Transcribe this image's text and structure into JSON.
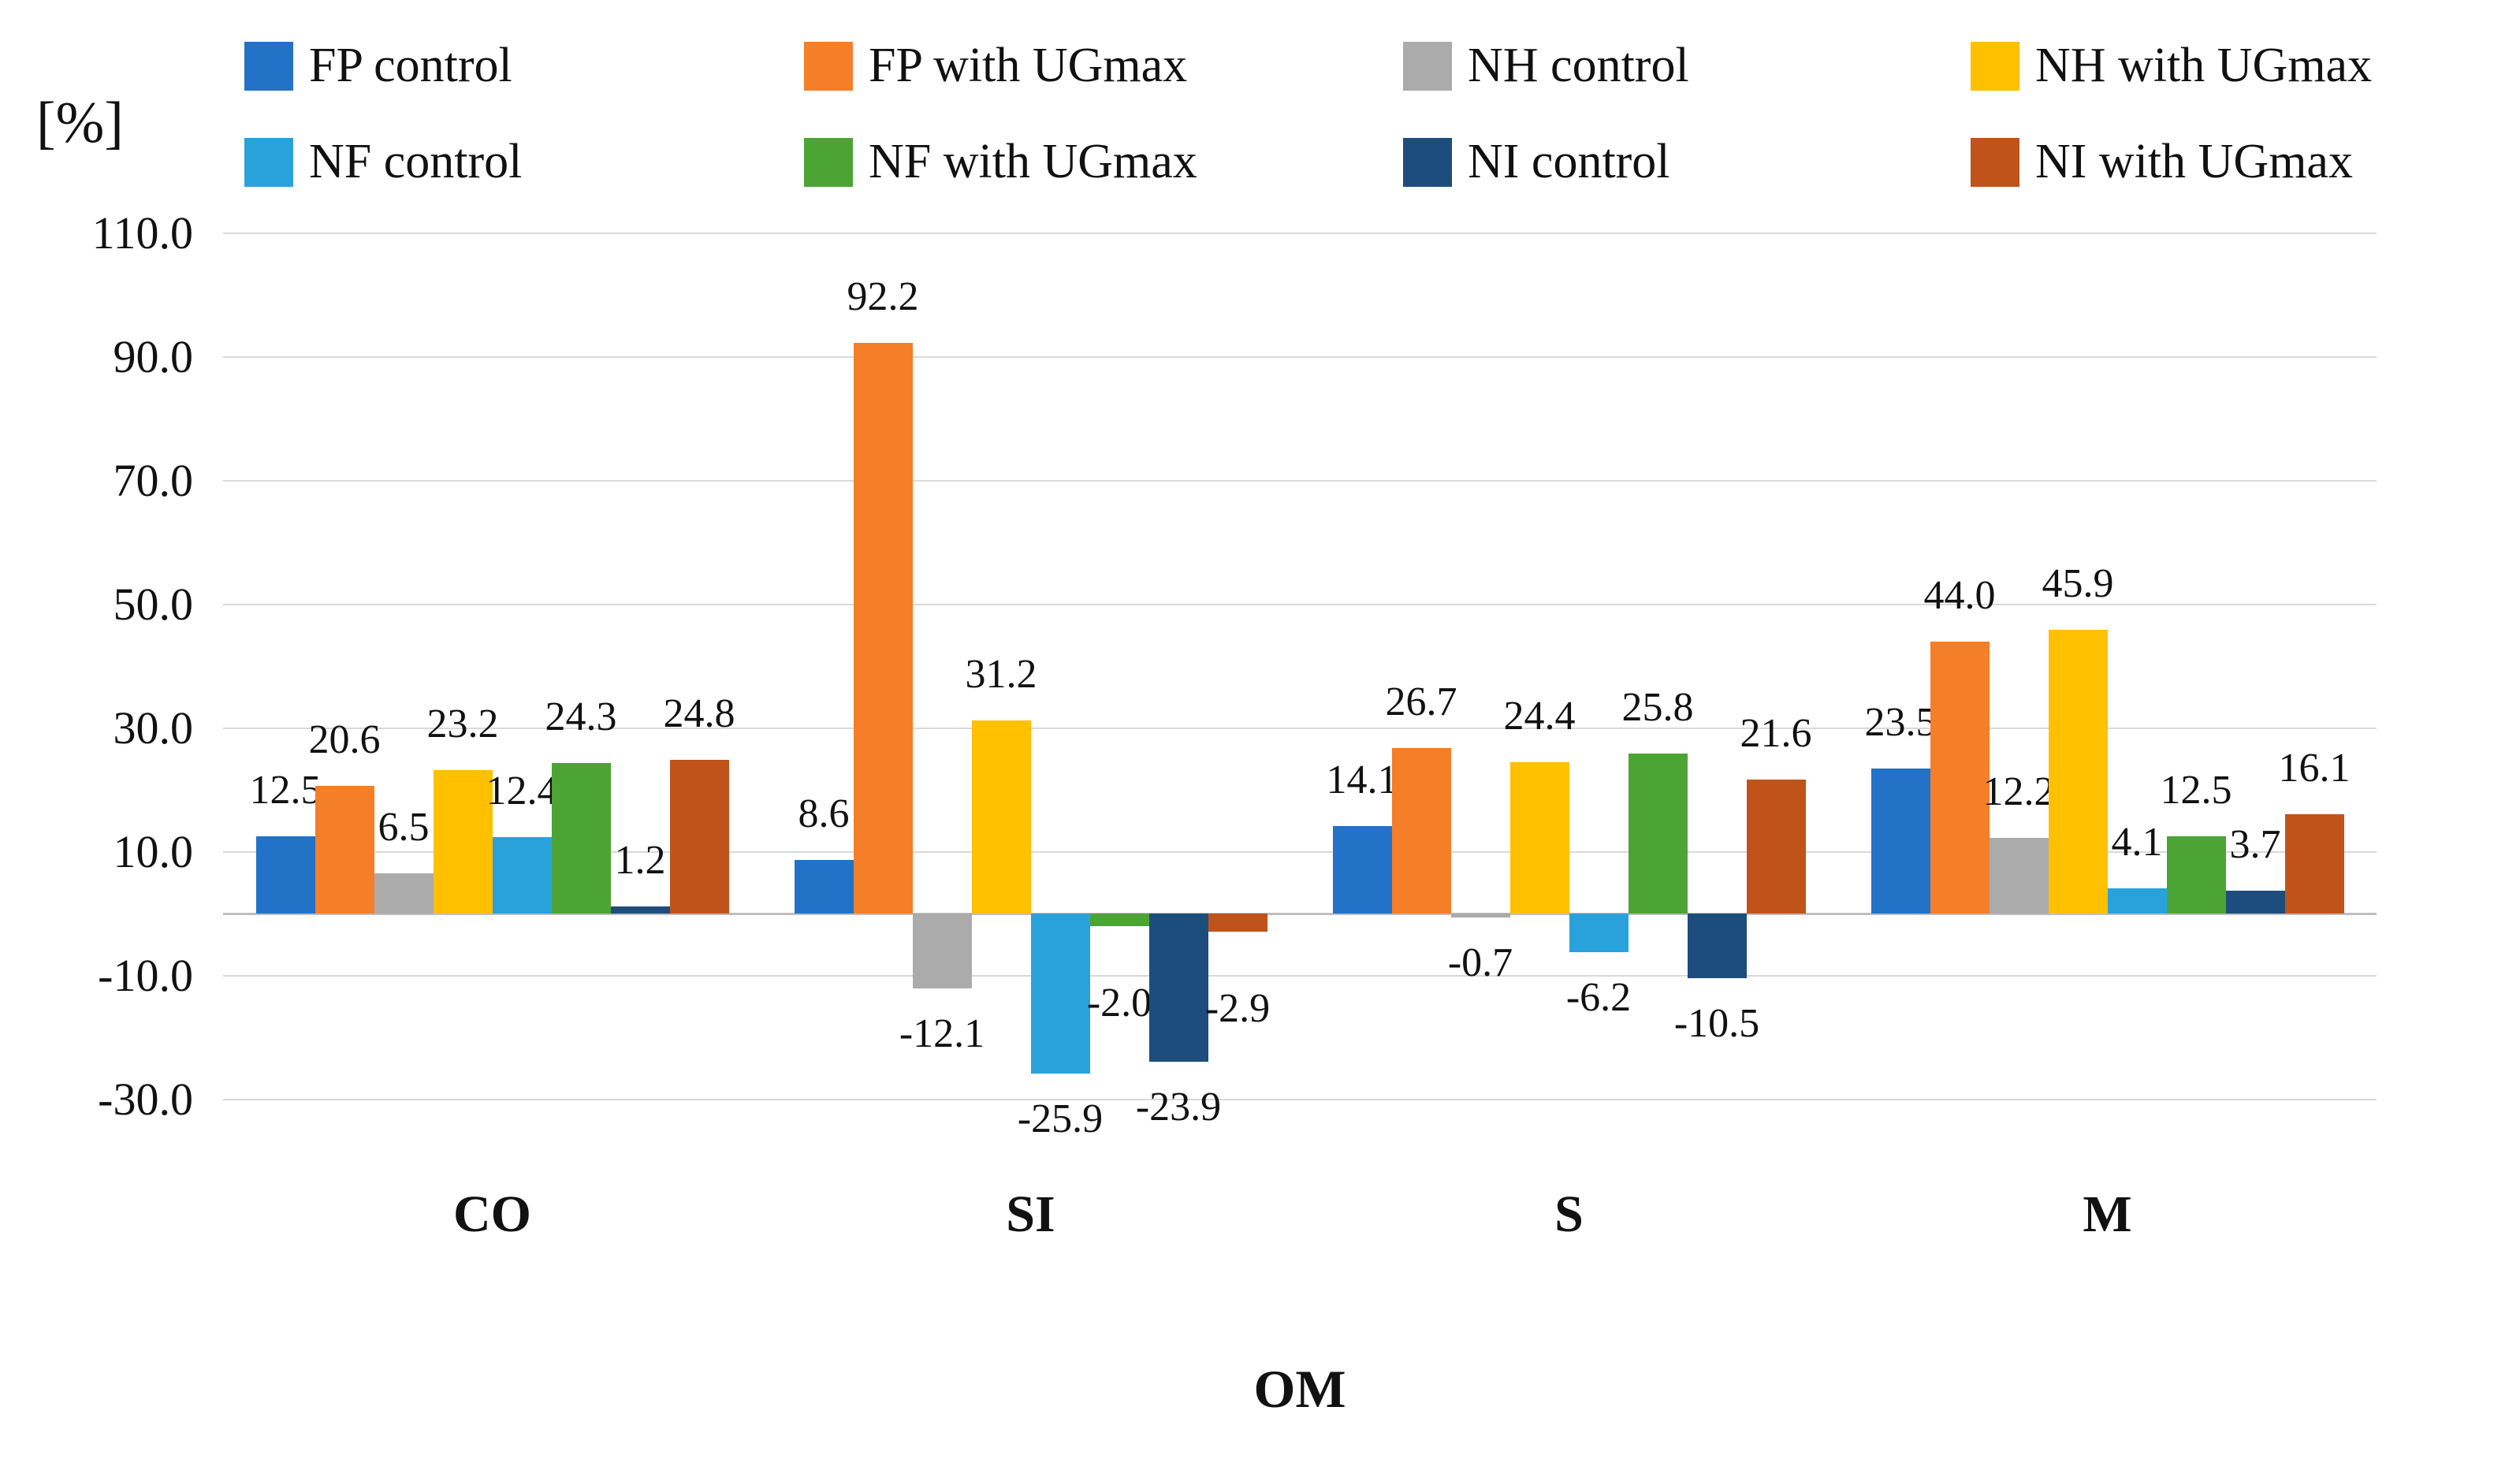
{
  "chart_data": {
    "type": "bar",
    "title": "",
    "ylabel": "[%]",
    "xlabel": "OM",
    "categories": [
      "CO",
      "SI",
      "S",
      "M"
    ],
    "series": [
      {
        "name": "FP control",
        "color": "#2272C8",
        "values": [
          12.5,
          8.6,
          14.1,
          23.5
        ],
        "label_dy": [
          0,
          0,
          0,
          0
        ]
      },
      {
        "name": "FP with UGmax",
        "color": "#F57E28",
        "values": [
          20.6,
          92.2,
          26.7,
          44.0
        ],
        "label_dy": [
          0,
          0,
          0,
          0
        ]
      },
      {
        "name": "NH control",
        "color": "#ABABAB",
        "values": [
          6.5,
          -12.1,
          -0.7,
          12.2
        ],
        "label_dy": [
          0,
          0,
          0,
          0
        ]
      },
      {
        "name": "NH with UGmax",
        "color": "#FFC000",
        "values": [
          23.2,
          31.2,
          24.4,
          45.9
        ],
        "label_dy": [
          0,
          0,
          0,
          0
        ]
      },
      {
        "name": "NF control",
        "color": "#29A2DC",
        "values": [
          12.4,
          -25.9,
          -6.2,
          4.1
        ],
        "label_dy": [
          0,
          0,
          0,
          0
        ]
      },
      {
        "name": "NF with UGmax",
        "color": "#4CA434",
        "values": [
          24.3,
          -2.0,
          25.8,
          12.5
        ],
        "label_dy": [
          0,
          40,
          0,
          0
        ]
      },
      {
        "name": "NI control",
        "color": "#1D4D7C",
        "values": [
          1.2,
          -23.9,
          -10.5,
          3.7
        ],
        "label_dy": [
          0,
          0,
          0,
          0
        ]
      },
      {
        "name": "NI with UGmax",
        "color": "#C0531A",
        "values": [
          24.8,
          -2.9,
          21.6,
          16.1
        ],
        "label_dy": [
          0,
          40,
          0,
          0
        ]
      }
    ],
    "y_axis": {
      "min": -30,
      "max": 110,
      "step": 20,
      "tick_labels": [
        "110.0",
        "90.0",
        "70.0",
        "50.0",
        "30.0",
        "10.0",
        "-10.0",
        "-30.0"
      ]
    },
    "legend_position": "top",
    "grid": true,
    "colors": {
      "gridline": "#D9D9D9",
      "axis_line": "#BFBFBF",
      "text": "#111111"
    }
  }
}
